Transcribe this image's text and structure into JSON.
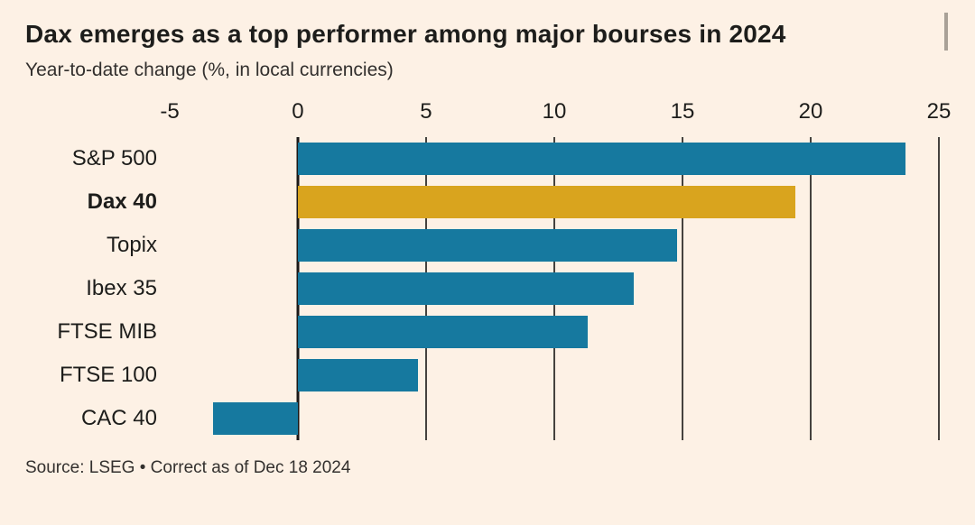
{
  "chart_data": {
    "type": "bar",
    "orientation": "horizontal",
    "title": "Dax emerges as a top performer among major bourses in 2024",
    "subtitle": "Year-to-date change (%, in local currencies)",
    "source": "Source: LSEG • Correct as of Dec 18 2024",
    "categories": [
      "S&P 500",
      "Dax 40",
      "Topix",
      "Ibex 35",
      "FTSE MIB",
      "FTSE 100",
      "CAC 40"
    ],
    "values": [
      23.7,
      19.4,
      14.8,
      13.1,
      11.3,
      4.7,
      -3.3
    ],
    "highlight_category": "Dax 40",
    "xlabel": "",
    "ylabel": "",
    "xlim": [
      -5,
      25
    ],
    "ticks": [
      -5,
      0,
      5,
      10,
      15,
      20,
      25
    ],
    "gridline_ticks": [
      5,
      10,
      15,
      20,
      25
    ],
    "legend": "none",
    "grid": "vertical",
    "colors": {
      "bar": "#16799f",
      "highlight": "#d9a41e",
      "background": "#fdf1e5",
      "stripe": "#e0ddd6",
      "grid": "#45423e",
      "zero_line": "#1a1817",
      "text": "#1d1d1b"
    }
  }
}
